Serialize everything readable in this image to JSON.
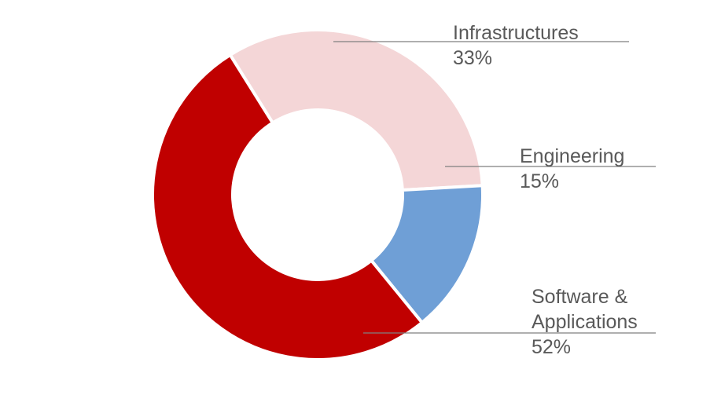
{
  "chart_data": {
    "type": "pie",
    "variant": "donut",
    "legend": "none",
    "categories": [
      "Infrastructures",
      "Engineering",
      "Software & Applications"
    ],
    "values": [
      33,
      15,
      52
    ],
    "unit": "%",
    "colors": [
      "#f4d6d7",
      "#6f9fd6",
      "#c00000"
    ],
    "labels": [
      {
        "lines": [
          "Infrastructures"
        ],
        "value": "33%"
      },
      {
        "lines": [
          "Engineering"
        ],
        "value": "15%"
      },
      {
        "lines": [
          "Software &",
          "Applications"
        ],
        "value": "52%"
      }
    ],
    "leader_line_color": "#7f7f7f"
  }
}
